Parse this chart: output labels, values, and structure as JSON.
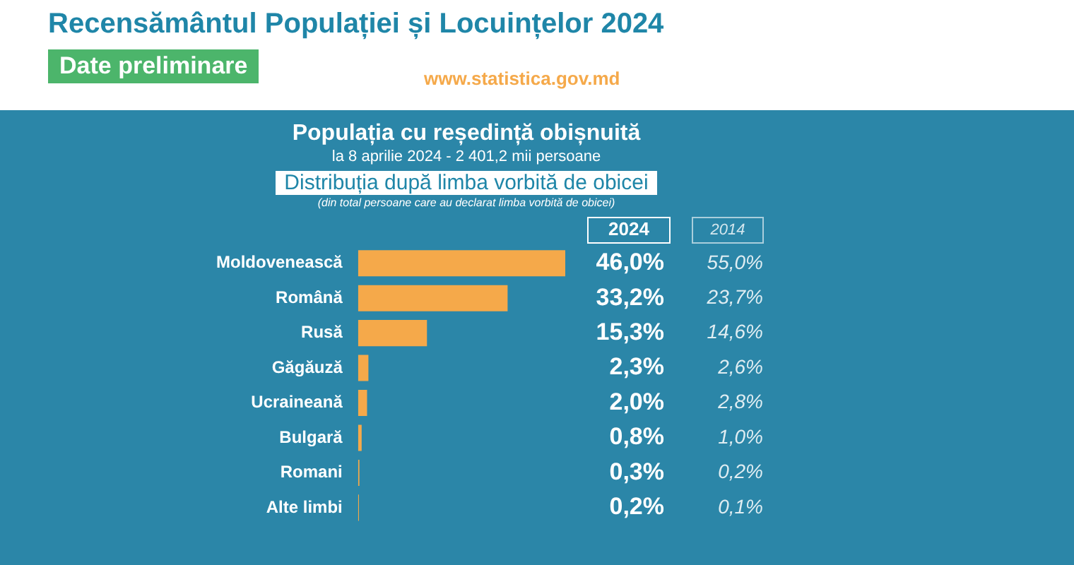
{
  "chart_data": {
    "type": "bar",
    "orientation": "horizontal",
    "title": "Recensământul Populației și Locuințelor 2024",
    "subtitle": "Date preliminare",
    "categories": [
      "Moldovenească",
      "Română",
      "Rusă",
      "Găgăuză",
      "Ucraineană",
      "Bulgară",
      "Romani",
      "Alte limbi"
    ],
    "series": [
      {
        "name": "2024",
        "color": "#f5a94a",
        "values": [
          46.0,
          33.2,
          15.3,
          2.3,
          2.0,
          0.8,
          0.3,
          0.2
        ],
        "value_labels": [
          "46,0%",
          "33,2%",
          "15,3%",
          "2,3%",
          "2,0%",
          "0,8%",
          "0,3%",
          "0,2%"
        ]
      }
    ],
    "annotations": [
      "www.statistica.gov.md",
      "Populația cu reședință obișnuită",
      "la 8 aprilie 2024 - 2 401,2 mii persoane",
      "Distribuția după limba vorbită de obicei",
      "(din total persoane care au declarat limba vorbită de obicei)",
      "2014",
      "55,0%",
      "23,7%",
      "14,6%",
      "2,6%",
      "2,8%",
      "1,0%",
      "0,2%",
      "0,1%"
    ],
    "grid": false,
    "legend": false
  }
}
